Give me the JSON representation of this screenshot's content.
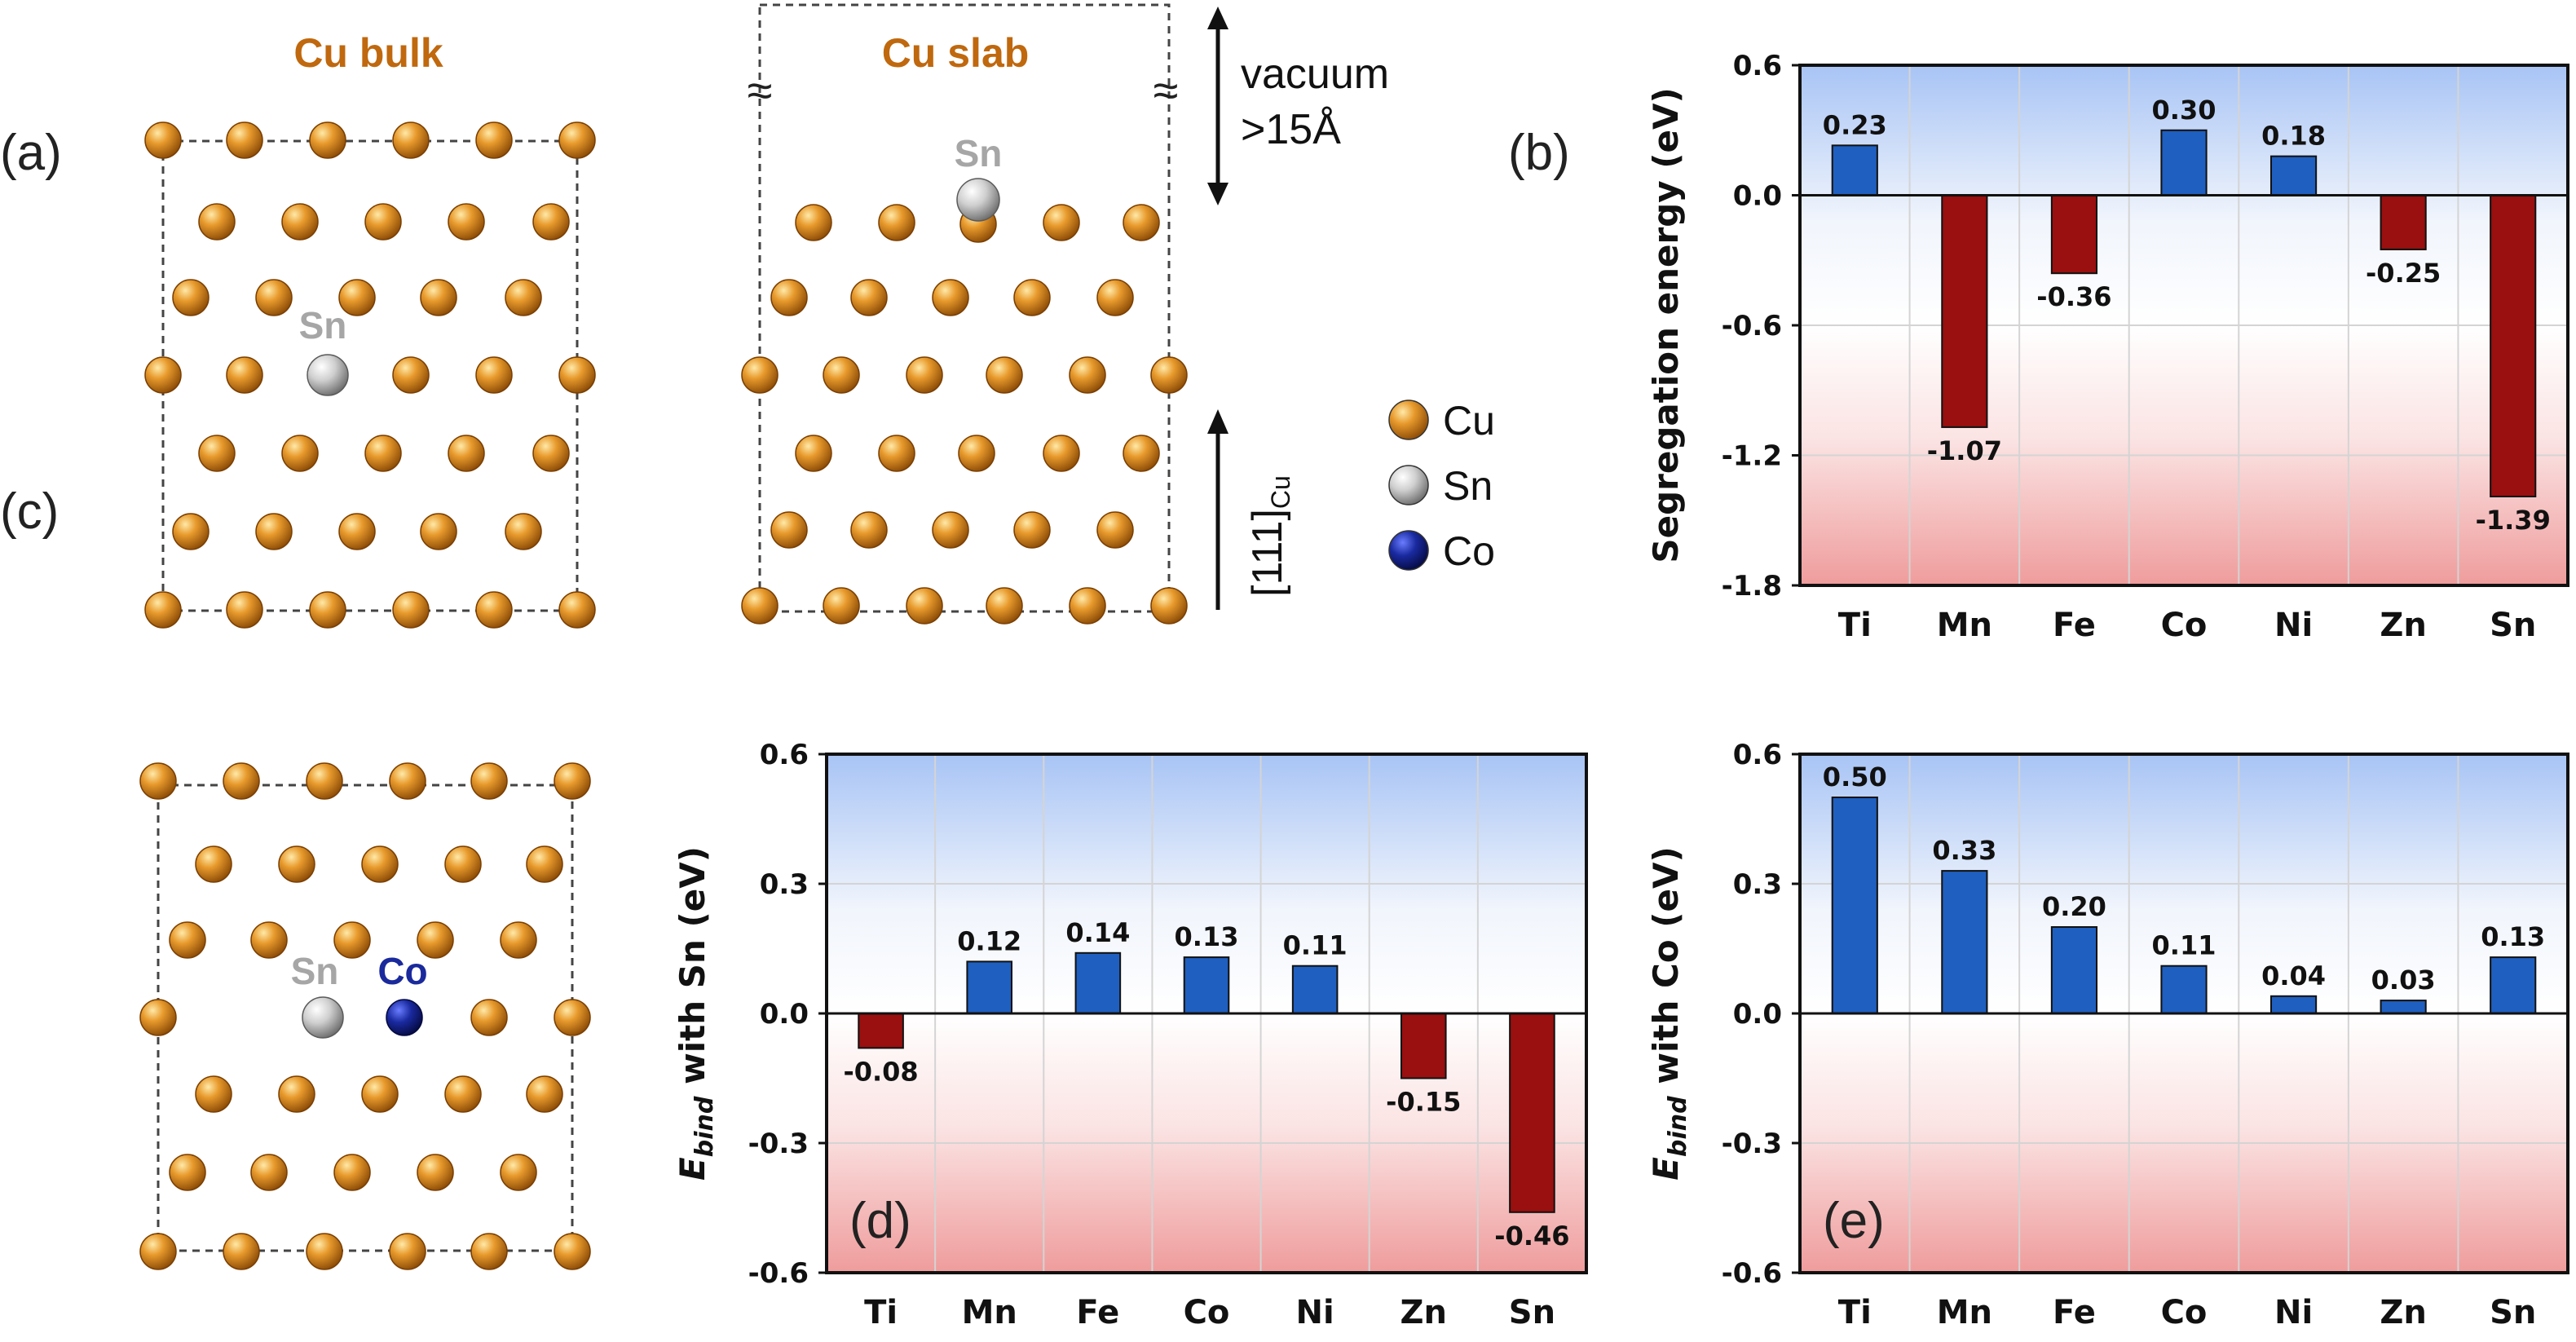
{
  "panel_labels": {
    "a": "(a)",
    "b": "(b)",
    "c": "(c)",
    "d": "(d)",
    "e": "(e)"
  },
  "structures": {
    "bulk_title": "Cu bulk",
    "slab_title": "Cu slab",
    "sn_label": "Sn",
    "co_label": "Co",
    "vacuum_line1": "vacuum",
    "vacuum_line2": ">15Å",
    "direction_main": "[111]",
    "direction_sub": "Cu",
    "break_mark": "≈"
  },
  "legend": [
    {
      "label": "Cu",
      "color": "#c8730f"
    },
    {
      "label": "Sn",
      "color": "#9a9a9a"
    },
    {
      "label": "Co",
      "color": "#15208f"
    }
  ],
  "colors": {
    "positive": "#1f5fbf",
    "negative": "#9a0f0f",
    "cu": "#c8730f",
    "sn_text": "#a6a6a6",
    "co_text": "#1a2a9c",
    "title_text": "#c0680e"
  },
  "chart_data": [
    {
      "id": "b",
      "type": "bar",
      "title": "",
      "categories": [
        "Ti",
        "Mn",
        "Fe",
        "Co",
        "Ni",
        "Zn",
        "Sn"
      ],
      "values": [
        0.23,
        -1.07,
        -0.36,
        0.3,
        0.18,
        -0.25,
        -1.39
      ],
      "value_labels": [
        "0.23",
        "-1.07",
        "-0.36",
        "0.30",
        "0.18",
        "-0.25",
        "-1.39"
      ],
      "ylabel": "Segregation energy (eV)",
      "ylim": [
        -1.8,
        0.6
      ],
      "yticks": [
        0.6,
        0.0,
        -0.6,
        -1.2,
        -1.8
      ],
      "ytick_labels": [
        "0.6",
        "0.0",
        "-0.6",
        "-1.2",
        "-1.8"
      ],
      "grid": true
    },
    {
      "id": "d",
      "type": "bar",
      "title": "",
      "categories": [
        "Ti",
        "Mn",
        "Fe",
        "Co",
        "Ni",
        "Zn",
        "Sn"
      ],
      "values": [
        -0.08,
        0.12,
        0.14,
        0.13,
        0.11,
        -0.15,
        -0.46
      ],
      "value_labels": [
        "-0.08",
        "0.12",
        "0.14",
        "0.13",
        "0.11",
        "-0.15",
        "-0.46"
      ],
      "ylabel_e": "E",
      "ylabel_sub": "bind",
      "ylabel_rest": " with Sn (eV)",
      "ylim": [
        -0.6,
        0.6
      ],
      "yticks": [
        0.6,
        0.3,
        0.0,
        -0.3,
        -0.6
      ],
      "ytick_labels": [
        "0.6",
        "0.3",
        "0.0",
        "-0.3",
        "-0.6"
      ],
      "grid": true
    },
    {
      "id": "e",
      "type": "bar",
      "title": "",
      "categories": [
        "Ti",
        "Mn",
        "Fe",
        "Co",
        "Ni",
        "Zn",
        "Sn"
      ],
      "values": [
        0.5,
        0.33,
        0.2,
        0.11,
        0.04,
        0.03,
        0.13
      ],
      "value_labels": [
        "0.50",
        "0.33",
        "0.20",
        "0.11",
        "0.04",
        "0.03",
        "0.13"
      ],
      "ylabel_e": "E",
      "ylabel_sub": "bind",
      "ylabel_rest": " with Co (eV)",
      "ylim": [
        -0.6,
        0.6
      ],
      "yticks": [
        0.6,
        0.3,
        0.0,
        -0.3,
        -0.6
      ],
      "ytick_labels": [
        "0.6",
        "0.3",
        "0.0",
        "-0.3",
        "-0.6"
      ],
      "grid": true
    }
  ]
}
